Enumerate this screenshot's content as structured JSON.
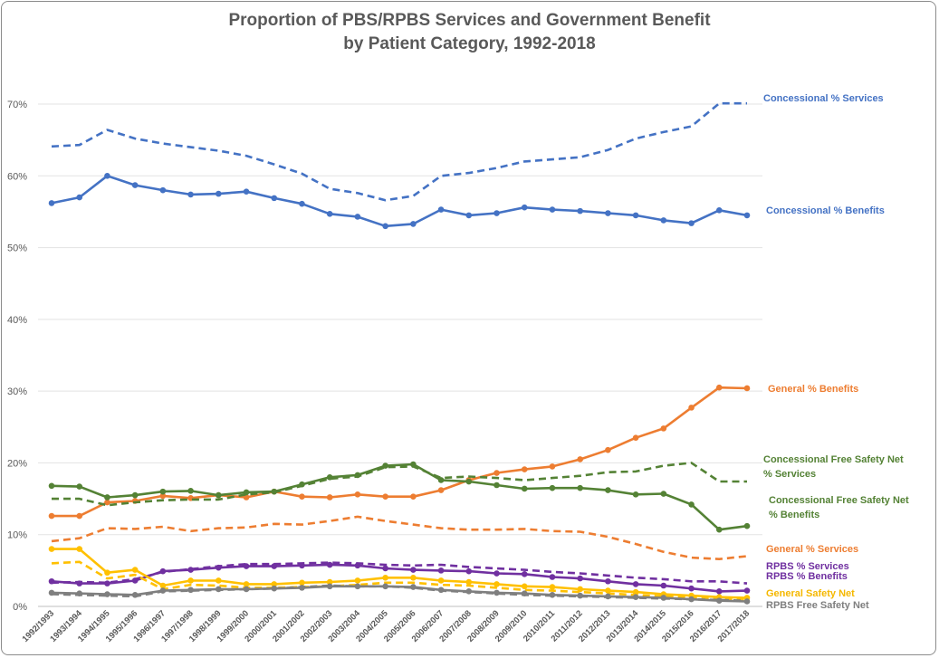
{
  "chart_data": {
    "type": "line",
    "title": "Proportion of PBS/RPBS Services and Government Benefit",
    "subtitle": "by Patient Category, 1992-2018",
    "xlabel": "",
    "ylabel": "",
    "ylim": [
      0,
      70
    ],
    "yticks": [
      "0%",
      "10%",
      "20%",
      "30%",
      "40%",
      "50%",
      "60%",
      "70%"
    ],
    "grid": true,
    "legend": "direct labels at right",
    "categories": [
      "1992/1993",
      "1993/1994",
      "1994/1995",
      "1995/1996",
      "1996/1997",
      "1997/1998",
      "1998/1999",
      "1999/2000",
      "2000/2001",
      "2001/2002",
      "2002/2003",
      "2003/2004",
      "2004/2005",
      "2005/2006",
      "2006/2007",
      "2007/2008",
      "2008/2009",
      "2009/2010",
      "2010/2011",
      "2011/2012",
      "2012/2013",
      "2013/2014",
      "2014/2015",
      "2015/2016",
      "2016/2017",
      "2017/2018"
    ],
    "series": [
      {
        "name": "Concessional % Services",
        "label_lines": [
          "Concessional % Services"
        ],
        "color": "#4472c4",
        "dashed": true,
        "markers": false,
        "values": [
          64.1,
          64.3,
          66.4,
          65.2,
          64.5,
          64.0,
          63.5,
          62.8,
          61.6,
          60.3,
          58.2,
          57.6,
          56.6,
          57.2,
          60.0,
          60.4,
          61.1,
          62.0,
          62.3,
          62.6,
          63.6,
          65.2,
          66.1,
          66.9,
          70.1,
          70.1
        ]
      },
      {
        "name": "Concessional % Benefits",
        "label_lines": [
          "Concessional % Benefits"
        ],
        "color": "#4472c4",
        "dashed": false,
        "markers": true,
        "values": [
          56.2,
          57.0,
          60.0,
          58.7,
          58.0,
          57.4,
          57.5,
          57.8,
          56.9,
          56.1,
          54.7,
          54.3,
          53.0,
          53.3,
          55.3,
          54.5,
          54.8,
          55.6,
          55.3,
          55.1,
          54.8,
          54.5,
          53.8,
          53.4,
          55.2,
          54.5
        ]
      },
      {
        "name": "General % Benefits",
        "label_lines": [
          "General % Benefits"
        ],
        "color": "#ed7d31",
        "dashed": false,
        "markers": true,
        "values": [
          12.6,
          12.6,
          14.5,
          14.7,
          15.4,
          15.1,
          15.5,
          15.2,
          16.0,
          15.3,
          15.2,
          15.6,
          15.3,
          15.3,
          16.2,
          17.6,
          18.6,
          19.1,
          19.5,
          20.5,
          21.8,
          23.5,
          24.8,
          27.7,
          30.5,
          30.4
        ]
      },
      {
        "name": "Concessional Free Safety Net % Services",
        "label_lines": [
          "Concessional Free Safety Net",
          "% Services"
        ],
        "color": "#548235",
        "dashed": true,
        "markers": false,
        "values": [
          15.0,
          15.0,
          14.1,
          14.5,
          14.8,
          14.9,
          14.9,
          15.6,
          15.9,
          16.8,
          17.8,
          18.1,
          19.4,
          19.5,
          17.9,
          18.1,
          17.9,
          17.6,
          17.9,
          18.2,
          18.7,
          18.8,
          19.6,
          20.0,
          17.4,
          17.4
        ]
      },
      {
        "name": "Concessional Free Safety Net % Benefits",
        "label_lines": [
          "Concessional Free Safety Net",
          "% Benefits"
        ],
        "color": "#548235",
        "dashed": false,
        "markers": true,
        "values": [
          16.8,
          16.7,
          15.2,
          15.5,
          16.0,
          16.1,
          15.5,
          15.9,
          16.0,
          17.0,
          18.0,
          18.3,
          19.6,
          19.8,
          17.6,
          17.4,
          16.9,
          16.4,
          16.5,
          16.5,
          16.2,
          15.6,
          15.7,
          14.2,
          10.7,
          11.2
        ]
      },
      {
        "name": "General % Services",
        "label_lines": [
          "General % Services"
        ],
        "color": "#ed7d31",
        "dashed": true,
        "markers": false,
        "values": [
          9.1,
          9.5,
          10.9,
          10.8,
          11.1,
          10.5,
          10.9,
          11.0,
          11.5,
          11.4,
          11.9,
          12.5,
          11.9,
          11.4,
          10.9,
          10.7,
          10.7,
          10.8,
          10.5,
          10.4,
          9.7,
          8.7,
          7.6,
          6.8,
          6.6,
          7.0
        ]
      },
      {
        "name": "RPBS % Services",
        "label_lines": [
          "RPBS % Services"
        ],
        "color": "#7030a0",
        "dashed": true,
        "markers": false,
        "values": [
          3.3,
          3.4,
          3.3,
          3.8,
          4.8,
          5.2,
          5.6,
          5.9,
          5.9,
          6.0,
          6.1,
          6.0,
          5.8,
          5.7,
          5.8,
          5.5,
          5.3,
          5.1,
          4.8,
          4.6,
          4.3,
          4.0,
          3.8,
          3.5,
          3.5,
          3.2
        ]
      },
      {
        "name": "RPBS % Benefits",
        "label_lines": [
          "RPBS % Benefits"
        ],
        "color": "#7030a0",
        "dashed": false,
        "markers": true,
        "values": [
          3.5,
          3.2,
          3.2,
          3.6,
          4.9,
          5.1,
          5.4,
          5.6,
          5.6,
          5.7,
          5.8,
          5.7,
          5.3,
          5.1,
          5.0,
          4.9,
          4.6,
          4.5,
          4.1,
          3.9,
          3.5,
          3.1,
          2.9,
          2.5,
          2.1,
          2.2
        ]
      },
      {
        "name": "General Safety Net",
        "label_lines": [
          "General Safety Net"
        ],
        "color": "#ffc000",
        "dashed": false,
        "markers": true,
        "values": [
          8.0,
          8.0,
          4.7,
          5.1,
          2.9,
          3.6,
          3.6,
          3.1,
          3.1,
          3.3,
          3.4,
          3.6,
          4.0,
          4.0,
          3.6,
          3.4,
          3.1,
          2.8,
          2.7,
          2.4,
          2.2,
          2.0,
          1.7,
          1.5,
          1.3,
          1.2
        ]
      },
      {
        "name": "General Safety Net (dashed)",
        "label_lines": [],
        "color": "#ffc000",
        "dashed": true,
        "markers": false,
        "values": [
          6.0,
          6.2,
          3.9,
          4.4,
          2.4,
          3.0,
          2.9,
          2.6,
          2.6,
          2.7,
          2.8,
          3.0,
          3.3,
          3.3,
          3.0,
          2.9,
          2.6,
          2.3,
          2.2,
          2.0,
          1.8,
          1.6,
          1.4,
          1.2,
          1.0,
          0.9
        ]
      },
      {
        "name": "RPBS Free Safety Net (dashed)",
        "label_lines": [],
        "color": "#7f7f7f",
        "dashed": true,
        "markers": false,
        "values": [
          1.7,
          1.6,
          1.5,
          1.4,
          2.1,
          2.2,
          2.3,
          2.4,
          2.5,
          2.7,
          2.9,
          2.8,
          2.8,
          2.6,
          2.2,
          2.0,
          1.8,
          1.6,
          1.5,
          1.4,
          1.3,
          1.2,
          1.1,
          1.0,
          0.9,
          0.8
        ]
      },
      {
        "name": "RPBS Free Safety Net",
        "label_lines": [
          "RPBS Free Safety Net"
        ],
        "color": "#7f7f7f",
        "dashed": false,
        "markers": true,
        "values": [
          1.9,
          1.8,
          1.7,
          1.6,
          2.2,
          2.3,
          2.4,
          2.4,
          2.5,
          2.6,
          2.8,
          2.8,
          2.8,
          2.7,
          2.3,
          2.1,
          1.9,
          1.8,
          1.6,
          1.5,
          1.4,
          1.3,
          1.2,
          1.0,
          0.8,
          0.7
        ]
      }
    ]
  }
}
